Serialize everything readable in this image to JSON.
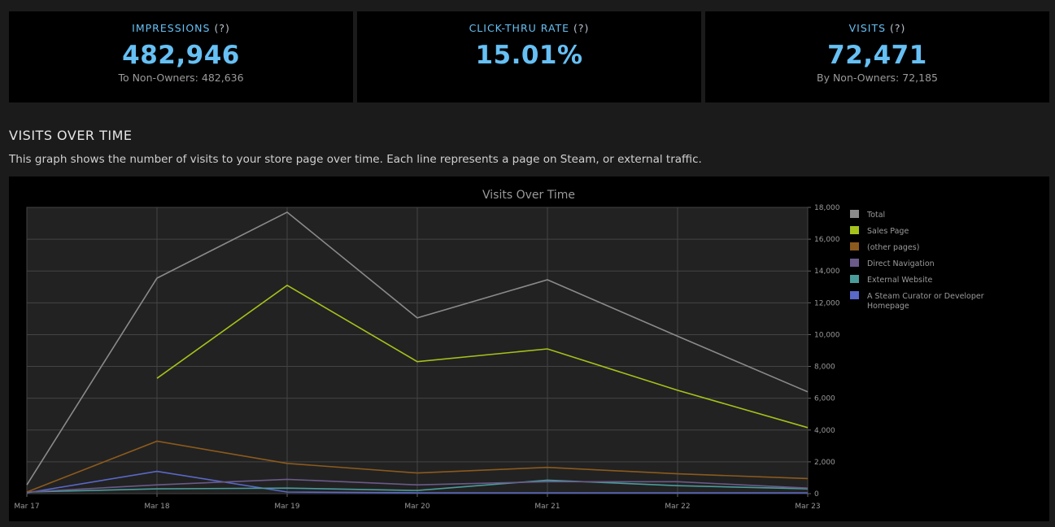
{
  "stats": [
    {
      "title": "IMPRESSIONS",
      "help": "(?)",
      "value": "482,946",
      "sub": "To Non-Owners: 482,636"
    },
    {
      "title": "CLICK-THRU RATE",
      "help": "(?)",
      "value": "15.01%",
      "sub": ""
    },
    {
      "title": "VISITS",
      "help": "(?)",
      "value": "72,471",
      "sub": "By Non-Owners: 72,185"
    }
  ],
  "section": {
    "title": "VISITS OVER TIME",
    "description": "This graph shows the number of visits to your store page over time. Each line represents a page on Steam, or external traffic."
  },
  "colors": {
    "accent": "#66c0f4",
    "background": "#1b1b1b",
    "card": "#000000",
    "plot_bg": "#222222"
  },
  "chart_data": {
    "type": "line",
    "title": "Visits Over Time",
    "xlabel": "",
    "ylabel": "",
    "categories": [
      "Mar 17",
      "Mar 18",
      "Mar 19",
      "Mar 20",
      "Mar 21",
      "Mar 22",
      "Mar 23"
    ],
    "ylim": [
      0,
      18000
    ],
    "yticks": [
      0,
      2000,
      4000,
      6000,
      8000,
      10000,
      12000,
      14000,
      16000,
      18000
    ],
    "ytick_labels": [
      "0",
      "2,000",
      "4,000",
      "6,000",
      "8,000",
      "10,000",
      "12,000",
      "14,000",
      "16,000",
      "18,000"
    ],
    "grid": true,
    "legend_position": "right",
    "series": [
      {
        "name": "Total",
        "color": "#8a8a8a",
        "values": [
          550,
          13550,
          17700,
          11050,
          13450,
          9900,
          6400
        ]
      },
      {
        "name": "Sales Page",
        "color": "#a4c21a",
        "values": [
          null,
          7250,
          13100,
          8300,
          9100,
          6500,
          4150
        ]
      },
      {
        "name": "(other pages)",
        "color": "#8c5a1c",
        "values": [
          100,
          3300,
          1900,
          1300,
          1650,
          1250,
          950
        ]
      },
      {
        "name": "Direct Navigation",
        "color": "#6a5a8a",
        "values": [
          100,
          550,
          900,
          550,
          750,
          750,
          350
        ]
      },
      {
        "name": "External Website",
        "color": "#4a9c9c",
        "values": [
          100,
          300,
          350,
          200,
          850,
          500,
          300
        ]
      },
      {
        "name": "A Steam Curator or Developer Homepage",
        "color": "#5a68c8",
        "values": [
          50,
          1400,
          100,
          50,
          50,
          50,
          50
        ]
      }
    ]
  }
}
